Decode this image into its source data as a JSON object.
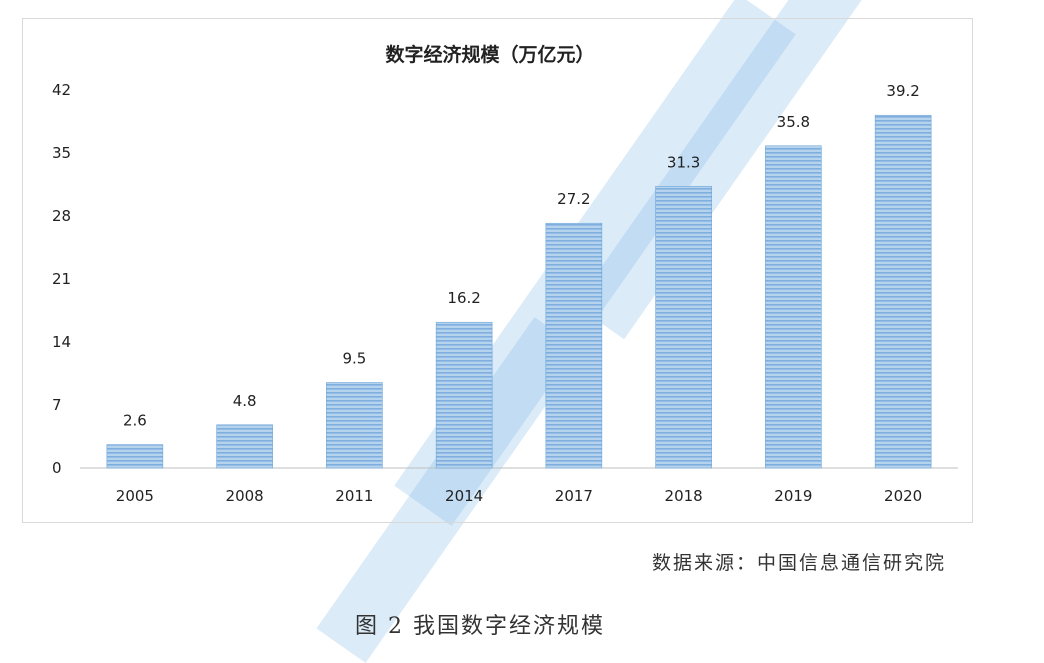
{
  "chart_data": {
    "type": "bar",
    "title": "数字经济规模（万亿元）",
    "categories": [
      "2005",
      "2008",
      "2011",
      "2014",
      "2017",
      "2018",
      "2019",
      "2020"
    ],
    "values": [
      2.6,
      4.8,
      9.5,
      16.2,
      27.2,
      31.3,
      35.8,
      39.2
    ],
    "data_labels": [
      "2.6",
      "4.8",
      "9.5",
      "16.2",
      "27.2",
      "31.3",
      "35.8",
      "39.2"
    ],
    "y_ticks": [
      "0",
      "7",
      "14",
      "21",
      "28",
      "35",
      "42"
    ],
    "ylim": [
      0,
      42
    ],
    "xlabel": "",
    "ylabel": "",
    "grid": false,
    "bar_color": "#9dc3e6",
    "bar_edge_color": "#5b9bd5"
  },
  "source_text": "数据来源：中国信息通信研究院",
  "caption_text": "图 2 我国数字经济规模"
}
